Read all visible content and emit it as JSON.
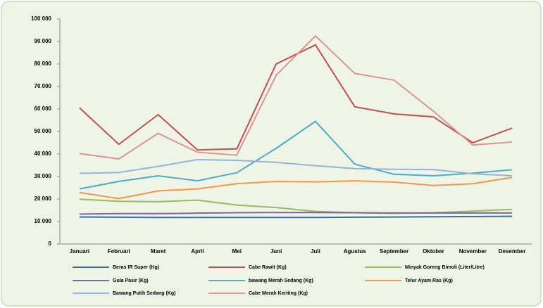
{
  "chart_data": {
    "type": "line",
    "categories": [
      "Januari",
      "Februari",
      "Maret",
      "April",
      "Mei",
      "Juni",
      "Juli",
      "Agustus",
      "September",
      "Oktober",
      "November",
      "Desember"
    ],
    "series": [
      {
        "name": "Beras IR  Super (Kg)",
        "color": "#3a6ea8",
        "values": [
          12000,
          11900,
          11800,
          11800,
          11800,
          11800,
          11800,
          11900,
          12000,
          12100,
          12200,
          12300
        ]
      },
      {
        "name": "Cabe Rawit (Kg)",
        "color": "#c0504d",
        "values": [
          60500,
          44300,
          57500,
          41800,
          42300,
          80000,
          88500,
          61000,
          57800,
          56500,
          45000,
          51500
        ]
      },
      {
        "name": "Minyak Goreng Bimoli (Liter/Litre)",
        "color": "#9bbb59",
        "values": [
          19900,
          19000,
          18800,
          19500,
          17300,
          16200,
          14500,
          13900,
          13600,
          13900,
          14600,
          15400
        ]
      },
      {
        "name": "Gula Pasir (Kg)",
        "color": "#8064a2",
        "values": [
          13300,
          13500,
          13500,
          13700,
          13900,
          14000,
          14000,
          13900,
          13800,
          13800,
          13800,
          13800
        ]
      },
      {
        "name": "bawang Merah Sedang (Kg)",
        "color": "#4bacc6",
        "values": [
          24500,
          27800,
          30300,
          28100,
          31700,
          42500,
          54500,
          35500,
          31000,
          30300,
          31500,
          33000
        ]
      },
      {
        "name": "Telur Ayam Ras (Kg)",
        "color": "#f79646",
        "values": [
          22900,
          20200,
          23600,
          24500,
          26800,
          27800,
          27600,
          28100,
          27500,
          26000,
          26800,
          29600
        ]
      },
      {
        "name": "Bawang Putih Sedang (Kg)",
        "color": "#94b3d6",
        "values": [
          31400,
          31800,
          34500,
          37500,
          37200,
          36300,
          34800,
          33500,
          33200,
          33100,
          31200,
          30300
        ]
      },
      {
        "name": "Cabe Merah Keriting (Kg)",
        "color": "#d99694",
        "values": [
          40200,
          37800,
          49200,
          40800,
          39500,
          75000,
          92500,
          75800,
          72800,
          59000,
          44000,
          45300
        ]
      }
    ],
    "ylim": [
      0,
      100000
    ],
    "yticks": [
      0,
      {
        "value": 10000,
        "label": "10 000"
      },
      {
        "value": 20000,
        "label": "20 000"
      },
      {
        "value": 30000,
        "label": "30 000"
      },
      {
        "value": 40000,
        "label": "40 000"
      },
      {
        "value": 50000,
        "label": "50 000"
      },
      {
        "value": 60000,
        "label": "60 000"
      },
      {
        "value": 70000,
        "label": "70 000"
      },
      {
        "value": 80000,
        "label": "80 000"
      },
      {
        "value": 90000,
        "label": "90 000"
      },
      {
        "value": 100000,
        "label": "100 000"
      }
    ],
    "legend": "bottom"
  }
}
